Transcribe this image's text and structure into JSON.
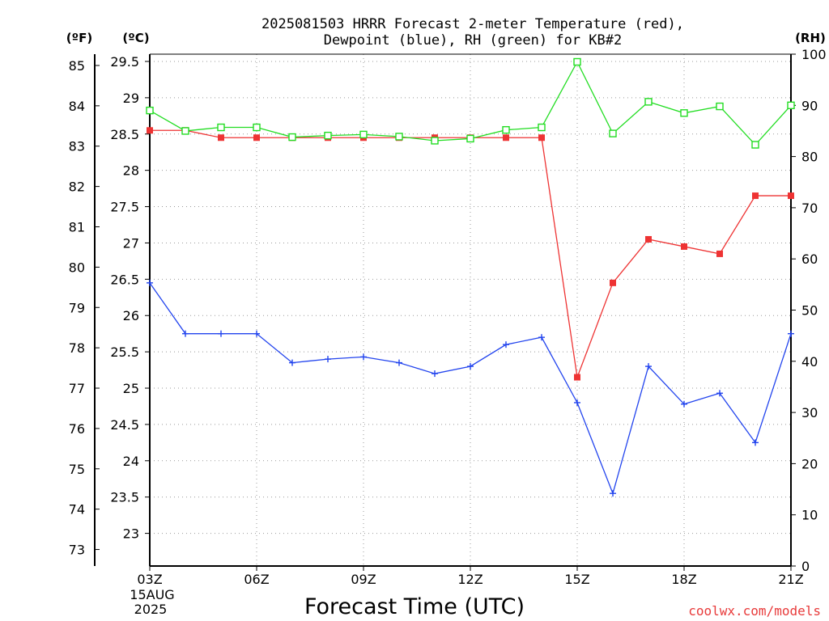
{
  "chart_data": {
    "type": "line",
    "title_line1": "2025081503 HRRR Forecast 2-meter Temperature (red),",
    "title_line2": "Dewpoint (blue), RH (green) for KB#2",
    "xlabel": "Forecast Time (UTC)",
    "x_tick_labels": [
      "03Z",
      "06Z",
      "09Z",
      "12Z",
      "15Z",
      "18Z",
      "21Z"
    ],
    "x_tick_hours": [
      3,
      6,
      9,
      12,
      15,
      18,
      21
    ],
    "date_label_line1": "15AUG",
    "date_label_line2": "2025",
    "x_hours": [
      3,
      4,
      5,
      6,
      7,
      8,
      9,
      10,
      11,
      12,
      13,
      14,
      15,
      16,
      17,
      18,
      19,
      20,
      21
    ],
    "xlim": [
      3,
      21
    ],
    "unit_f": "(ºF)",
    "unit_c": "(ºC)",
    "unit_rh": "(RH)",
    "ylim_c": [
      22.55,
      29.6
    ],
    "ylim_f": [
      72.59,
      85.28
    ],
    "ylim_rh": [
      0,
      100
    ],
    "y_ticks_c": [
      "23",
      "23.5",
      "24",
      "24.5",
      "25",
      "25.5",
      "26",
      "26.5",
      "27",
      "27.5",
      "28",
      "28.5",
      "29",
      "29.5"
    ],
    "y_ticks_f": [
      "73",
      "74",
      "75",
      "76",
      "77",
      "78",
      "79",
      "80",
      "81",
      "82",
      "83",
      "84",
      "85"
    ],
    "y_ticks_rh": [
      "0",
      "10",
      "20",
      "30",
      "40",
      "50",
      "60",
      "70",
      "80",
      "90",
      "100"
    ],
    "grid": true,
    "series": [
      {
        "key": "temperature",
        "unit": "C",
        "color": "#ee3333",
        "marker": "filled-square",
        "values": [
          28.55,
          28.55,
          28.45,
          28.45,
          28.45,
          28.45,
          28.45,
          28.45,
          28.45,
          28.45,
          28.45,
          28.45,
          25.15,
          26.45,
          27.05,
          26.95,
          26.85,
          27.65,
          27.65
        ]
      },
      {
        "key": "dewpoint",
        "unit": "C",
        "color": "#2244ee",
        "marker": "plus",
        "values": [
          26.45,
          25.75,
          25.75,
          25.75,
          25.35,
          25.4,
          25.43,
          25.35,
          25.2,
          25.3,
          25.6,
          25.7,
          24.8,
          23.55,
          25.3,
          24.78,
          24.93,
          24.25,
          25.75
        ]
      },
      {
        "key": "rh",
        "unit": "%",
        "color": "#22dd22",
        "marker": "open-square",
        "values": [
          89,
          85,
          85.7,
          85.7,
          83.8,
          84.1,
          84.3,
          83.9,
          83.1,
          83.5,
          85.2,
          85.7,
          98.5,
          84.5,
          90.7,
          88.5,
          89.8,
          82.3,
          90
        ]
      }
    ]
  },
  "credit": "coolwx.com/models"
}
